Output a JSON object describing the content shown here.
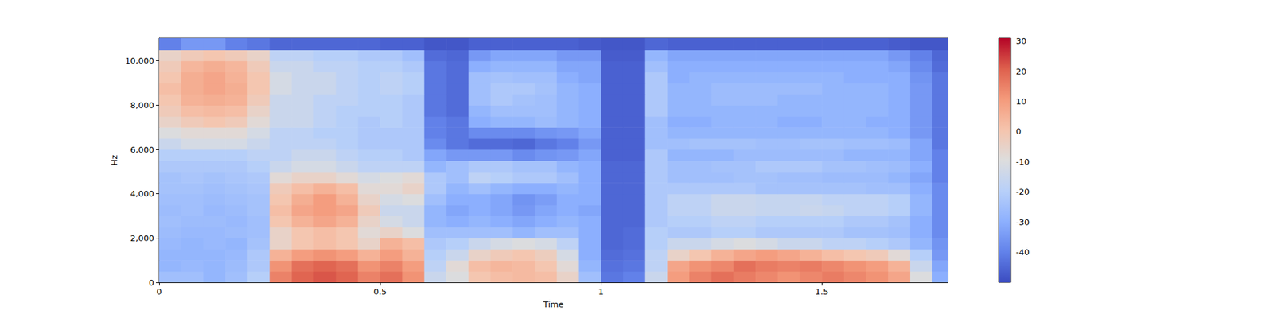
{
  "chart_data": {
    "type": "spectrogram",
    "x_label": "Time",
    "y_label": "Hz",
    "xlim": [
      0,
      1.785
    ],
    "xticks": [
      0,
      0.5,
      1,
      1.5
    ],
    "ylim": [
      0,
      11025
    ],
    "yticks": [
      0,
      2000,
      4000,
      6000,
      8000,
      10000
    ],
    "time_edges": [
      0,
      0.05,
      0.1,
      0.15,
      0.2,
      0.25,
      0.3,
      0.35,
      0.4,
      0.45,
      0.5,
      0.55,
      0.6,
      0.65,
      0.7,
      0.75,
      0.8,
      0.85,
      0.9,
      0.95,
      1,
      1.05,
      1.1,
      1.15,
      1.2,
      1.25,
      1.3,
      1.35,
      1.4,
      1.45,
      1.5,
      1.55,
      1.6,
      1.65,
      1.7,
      1.75,
      1.8
    ],
    "freq_edges": [
      0,
      500,
      1000,
      1500,
      2000,
      2500,
      3000,
      3500,
      4000,
      4500,
      5000,
      5500,
      6000,
      6500,
      7000,
      7500,
      8000,
      8500,
      9000,
      9500,
      10000,
      10500,
      11025
    ],
    "cells": [
      [
        -25,
        -25,
        -28,
        -25,
        -20,
        15,
        20,
        22,
        20,
        15,
        18,
        12,
        -15,
        -10,
        0,
        2,
        3,
        2,
        -5,
        -25,
        -42,
        -40,
        -15,
        10,
        15,
        18,
        16,
        14,
        12,
        14,
        16,
        14,
        12,
        8,
        -10,
        -30
      ],
      [
        -28,
        -27,
        -28,
        -26,
        -22,
        12,
        18,
        20,
        18,
        12,
        15,
        10,
        -18,
        -8,
        2,
        4,
        3,
        0,
        -8,
        -28,
        -43,
        -42,
        -18,
        8,
        12,
        14,
        18,
        16,
        15,
        16,
        14,
        12,
        10,
        5,
        -15,
        -32
      ],
      [
        -28,
        -28,
        -28,
        -27,
        -22,
        5,
        10,
        12,
        10,
        5,
        10,
        5,
        -20,
        -15,
        -5,
        -2,
        0,
        -3,
        -12,
        -30,
        -44,
        -43,
        -18,
        -5,
        0,
        5,
        8,
        10,
        8,
        5,
        2,
        0,
        -2,
        -8,
        -20,
        -35
      ],
      [
        -27,
        -28,
        -27,
        -28,
        -24,
        -5,
        0,
        2,
        0,
        -5,
        5,
        2,
        -22,
        -20,
        -15,
        -12,
        -10,
        -12,
        -18,
        -30,
        -45,
        -44,
        -20,
        -15,
        -15,
        -12,
        -10,
        -12,
        -15,
        -15,
        -18,
        -18,
        -20,
        -22,
        -28,
        -36
      ],
      [
        -26,
        -27,
        -27,
        -26,
        -25,
        -5,
        0,
        2,
        0,
        -8,
        -5,
        -10,
        -25,
        -25,
        -25,
        -25,
        -28,
        -25,
        -25,
        -30,
        -45,
        -44,
        -20,
        -22,
        -22,
        -20,
        -20,
        -22,
        -22,
        -22,
        -22,
        -24,
        -24,
        -25,
        -30,
        -38
      ],
      [
        -25,
        -26,
        -26,
        -27,
        -25,
        0,
        5,
        8,
        5,
        -5,
        -12,
        -15,
        -28,
        -30,
        -28,
        -30,
        -32,
        -30,
        -28,
        -30,
        -45,
        -45,
        -22,
        -20,
        -20,
        -18,
        -18,
        -20,
        -20,
        -20,
        -20,
        -22,
        -22,
        -24,
        -30,
        -38
      ],
      [
        -26,
        -25,
        -27,
        -26,
        -24,
        2,
        8,
        10,
        8,
        -2,
        -15,
        -15,
        -28,
        -32,
        -30,
        -32,
        -35,
        -32,
        -30,
        -32,
        -45,
        -45,
        -22,
        -18,
        -18,
        -15,
        -15,
        -16,
        -16,
        -15,
        -16,
        -18,
        -18,
        -20,
        -28,
        -38
      ],
      [
        -25,
        -25,
        -26,
        -25,
        -24,
        0,
        6,
        10,
        5,
        -5,
        -12,
        -10,
        -25,
        -30,
        -30,
        -32,
        -36,
        -34,
        -30,
        -30,
        -45,
        -45,
        -22,
        -18,
        -18,
        -15,
        -15,
        -16,
        -16,
        -16,
        -18,
        -18,
        -18,
        -20,
        -28,
        -38
      ],
      [
        -24,
        -24,
        -25,
        -24,
        -23,
        -2,
        2,
        5,
        2,
        -8,
        -8,
        -5,
        -22,
        -28,
        -25,
        -28,
        -30,
        -30,
        -28,
        -30,
        -45,
        -45,
        -22,
        -22,
        -22,
        -22,
        -22,
        -24,
        -24,
        -24,
        -24,
        -24,
        -25,
        -25,
        -30,
        -38
      ],
      [
        -24,
        -23,
        -24,
        -23,
        -22,
        -8,
        -5,
        -5,
        -8,
        -12,
        -10,
        -8,
        -22,
        -25,
        -18,
        -20,
        -22,
        -22,
        -25,
        -30,
        -45,
        -45,
        -22,
        -25,
        -25,
        -25,
        -24,
        -24,
        -25,
        -25,
        -26,
        -26,
        -26,
        -28,
        -32,
        -40
      ],
      [
        -22,
        -22,
        -22,
        -22,
        -20,
        -15,
        -12,
        -12,
        -15,
        -18,
        -18,
        -18,
        -28,
        -25,
        -22,
        -22,
        -24,
        -24,
        -28,
        -30,
        -45,
        -45,
        -22,
        -25,
        -25,
        -24,
        -24,
        -22,
        -22,
        -22,
        -24,
        -24,
        -25,
        -26,
        -30,
        -40
      ],
      [
        -20,
        -20,
        -20,
        -20,
        -18,
        -18,
        -15,
        -15,
        -18,
        -20,
        -20,
        -22,
        -32,
        -35,
        -35,
        -35,
        -38,
        -36,
        -35,
        -32,
        -46,
        -46,
        -22,
        -28,
        -28,
        -28,
        -26,
        -26,
        -26,
        -26,
        -26,
        -28,
        -28,
        -28,
        -32,
        -40
      ],
      [
        -15,
        -12,
        -12,
        -12,
        -15,
        -18,
        -18,
        -18,
        -20,
        -22,
        -22,
        -22,
        -38,
        -42,
        -44,
        -44,
        -45,
        -42,
        -40,
        -35,
        -46,
        -46,
        -25,
        -25,
        -24,
        -24,
        -24,
        -25,
        -25,
        -24,
        -24,
        -25,
        -25,
        -26,
        -32,
        -42
      ],
      [
        -10,
        -8,
        -8,
        -8,
        -12,
        -18,
        -18,
        -20,
        -20,
        -22,
        -22,
        -22,
        -40,
        -42,
        -38,
        -38,
        -38,
        -36,
        -35,
        -32,
        -46,
        -46,
        -25,
        -28,
        -28,
        -28,
        -28,
        -28,
        -28,
        -28,
        -28,
        -28,
        -28,
        -30,
        -35,
        -42
      ],
      [
        -5,
        -2,
        0,
        -2,
        -8,
        -15,
        -15,
        -18,
        -20,
        -22,
        -20,
        -22,
        -40,
        -42,
        -30,
        -28,
        -28,
        -26,
        -28,
        -30,
        -46,
        -46,
        -25,
        -30,
        -30,
        -28,
        -28,
        -28,
        -30,
        -30,
        -28,
        -28,
        -30,
        -30,
        -35,
        -42
      ],
      [
        -2,
        2,
        3,
        2,
        -5,
        -15,
        -15,
        -18,
        -20,
        -20,
        -20,
        -22,
        -42,
        -44,
        -28,
        -25,
        -25,
        -25,
        -28,
        -30,
        -46,
        -46,
        -22,
        -28,
        -28,
        -28,
        -28,
        -28,
        -28,
        -28,
        -28,
        -28,
        -28,
        -30,
        -35,
        -42
      ],
      [
        0,
        5,
        6,
        5,
        -2,
        -15,
        -15,
        -18,
        -18,
        -20,
        -20,
        -22,
        -42,
        -44,
        -25,
        -22,
        -24,
        -25,
        -28,
        -30,
        -46,
        -46,
        -22,
        -28,
        -28,
        -26,
        -26,
        -26,
        -28,
        -28,
        -28,
        -28,
        -28,
        -30,
        -35,
        -42
      ],
      [
        2,
        6,
        8,
        6,
        0,
        -12,
        -15,
        -15,
        -18,
        -20,
        -18,
        -20,
        -42,
        -44,
        -25,
        -22,
        -22,
        -24,
        -28,
        -30,
        -46,
        -46,
        -22,
        -28,
        -28,
        -26,
        -26,
        -26,
        -26,
        -26,
        -28,
        -28,
        -28,
        -30,
        -35,
        -42
      ],
      [
        0,
        6,
        8,
        5,
        0,
        -12,
        -15,
        -15,
        -18,
        -20,
        -18,
        -20,
        -42,
        -44,
        -25,
        -24,
        -25,
        -25,
        -30,
        -32,
        -46,
        -46,
        -22,
        -30,
        -28,
        -28,
        -28,
        -28,
        -28,
        -28,
        -28,
        -30,
        -30,
        -30,
        -36,
        -42
      ],
      [
        -2,
        4,
        6,
        4,
        -2,
        -15,
        -15,
        -18,
        -18,
        -20,
        -20,
        -22,
        -42,
        -44,
        -30,
        -28,
        -28,
        -28,
        -32,
        -32,
        -46,
        -46,
        -25,
        -30,
        -30,
        -30,
        -30,
        -30,
        -30,
        -30,
        -30,
        -30,
        -30,
        -32,
        -38,
        -44
      ],
      [
        -5,
        -2,
        0,
        -2,
        -5,
        -18,
        -18,
        -20,
        -20,
        -22,
        -22,
        -25,
        -44,
        -45,
        -35,
        -32,
        -32,
        -32,
        -35,
        -35,
        -47,
        -47,
        -28,
        -32,
        -32,
        -32,
        -32,
        -32,
        -32,
        -32,
        -32,
        -32,
        -32,
        -35,
        -40,
        -45
      ],
      [
        -40,
        -35,
        -35,
        -40,
        -42,
        -45,
        -45,
        -45,
        -45,
        -45,
        -46,
        -46,
        -48,
        -48,
        -46,
        -46,
        -46,
        -46,
        -46,
        -47,
        -48,
        -48,
        -45,
        -46,
        -46,
        -46,
        -46,
        -46,
        -46,
        -46,
        -46,
        -46,
        -46,
        -47,
        -48,
        -48
      ]
    ],
    "colorbar": {
      "range": [
        -50,
        31
      ],
      "ticks": [
        -40,
        -30,
        -20,
        -10,
        0,
        10,
        20,
        30
      ]
    }
  }
}
